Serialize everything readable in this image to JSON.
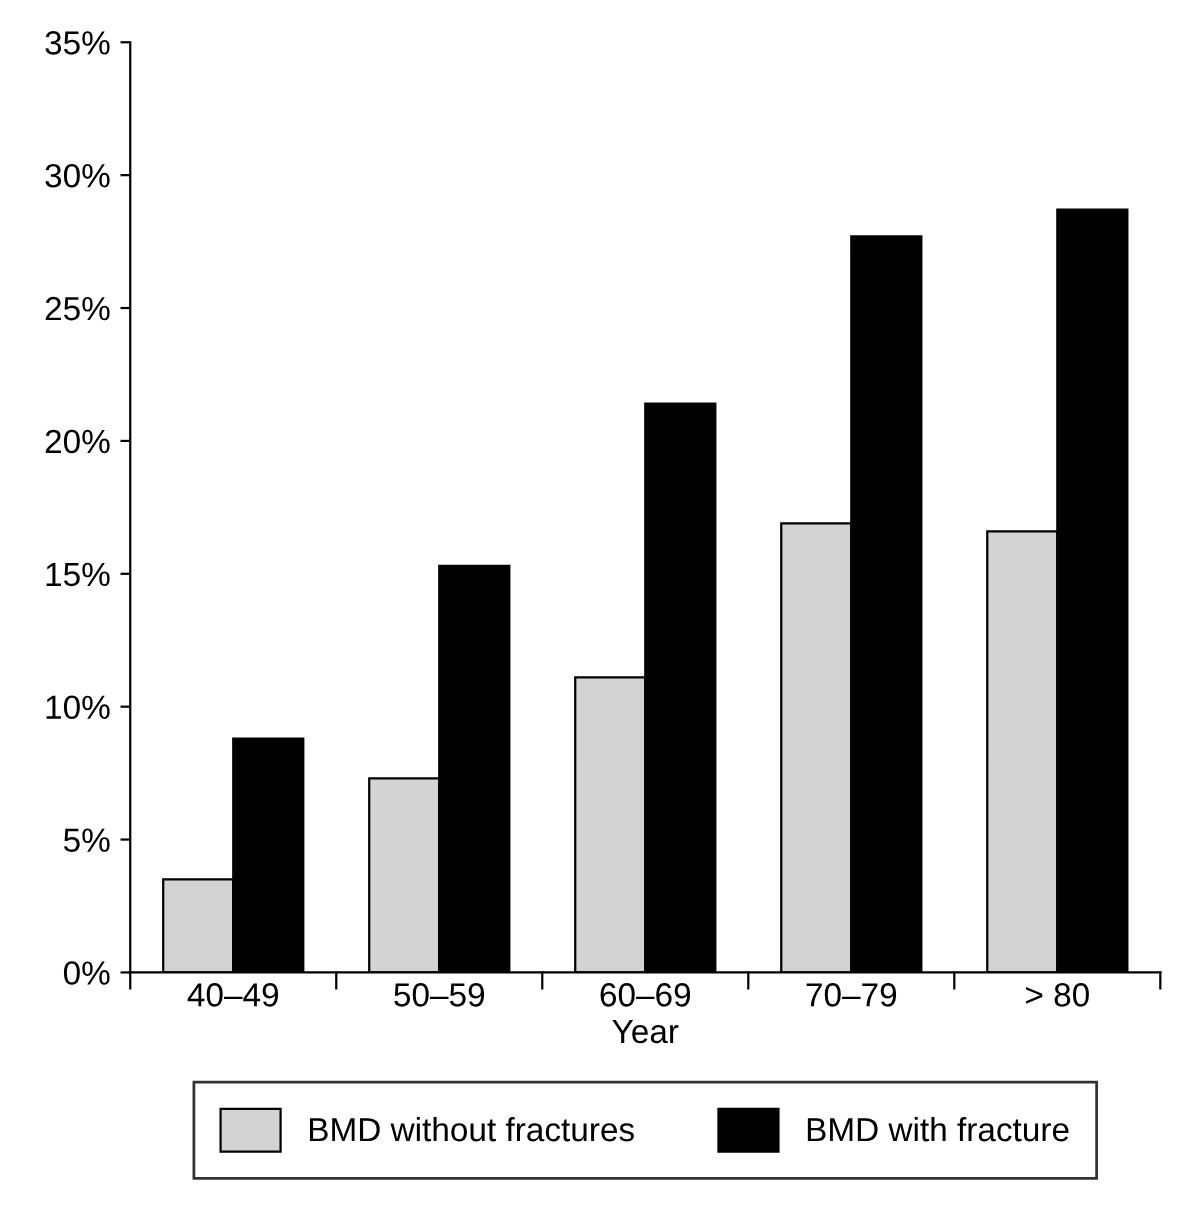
{
  "chart_data": {
    "type": "bar",
    "xlabel": "Year",
    "categories": [
      "40–49",
      "50–59",
      "60–69",
      "70–79",
      "> 80"
    ],
    "series": [
      {
        "name": "BMD without fractures",
        "color": "#d3d3d3",
        "values": [
          3.5,
          7.3,
          11.1,
          16.9,
          16.6
        ]
      },
      {
        "name": "BMD with fracture",
        "color": "#000000",
        "values": [
          8.8,
          15.3,
          21.4,
          27.7,
          28.7
        ]
      }
    ],
    "ylim": [
      0,
      35
    ],
    "yticks": [
      {
        "value": 0,
        "label": "0%"
      },
      {
        "value": 5,
        "label": "5%"
      },
      {
        "value": 10,
        "label": "10%"
      },
      {
        "value": 15,
        "label": "15%"
      },
      {
        "value": 20,
        "label": "20%"
      },
      {
        "value": 25,
        "label": "25%"
      },
      {
        "value": 30,
        "label": "30%"
      },
      {
        "value": 35,
        "label": "35%"
      }
    ],
    "grid": false,
    "legend": "bottom"
  }
}
